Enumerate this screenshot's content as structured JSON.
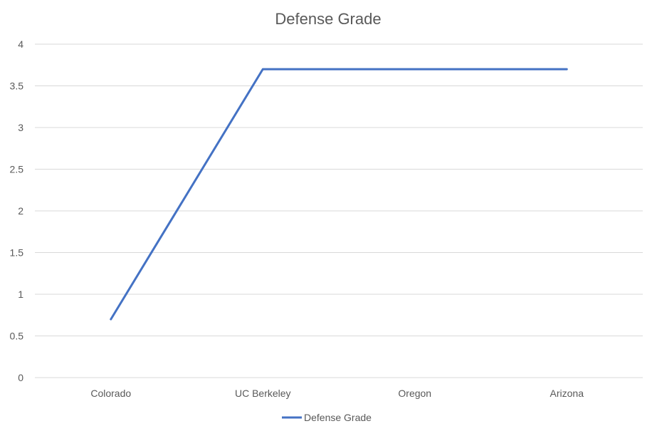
{
  "chart_data": {
    "type": "line",
    "title": "Defense Grade",
    "categories": [
      "Colorado",
      "UC Berkeley",
      "Oregon",
      "Arizona"
    ],
    "series": [
      {
        "name": "Defense Grade",
        "values": [
          0.7,
          3.7,
          3.7,
          3.7
        ],
        "color": "#4472C4"
      }
    ],
    "ylim": [
      0,
      4
    ],
    "yticks": [
      0,
      0.5,
      1,
      1.5,
      2,
      2.5,
      3,
      3.5,
      4
    ],
    "ytick_labels": [
      "0",
      "0.5",
      "1",
      "1.5",
      "2",
      "2.5",
      "3",
      "3.5",
      "4"
    ],
    "grid": true,
    "gridline_color": "#D9D9D9",
    "legend": "bottom"
  }
}
